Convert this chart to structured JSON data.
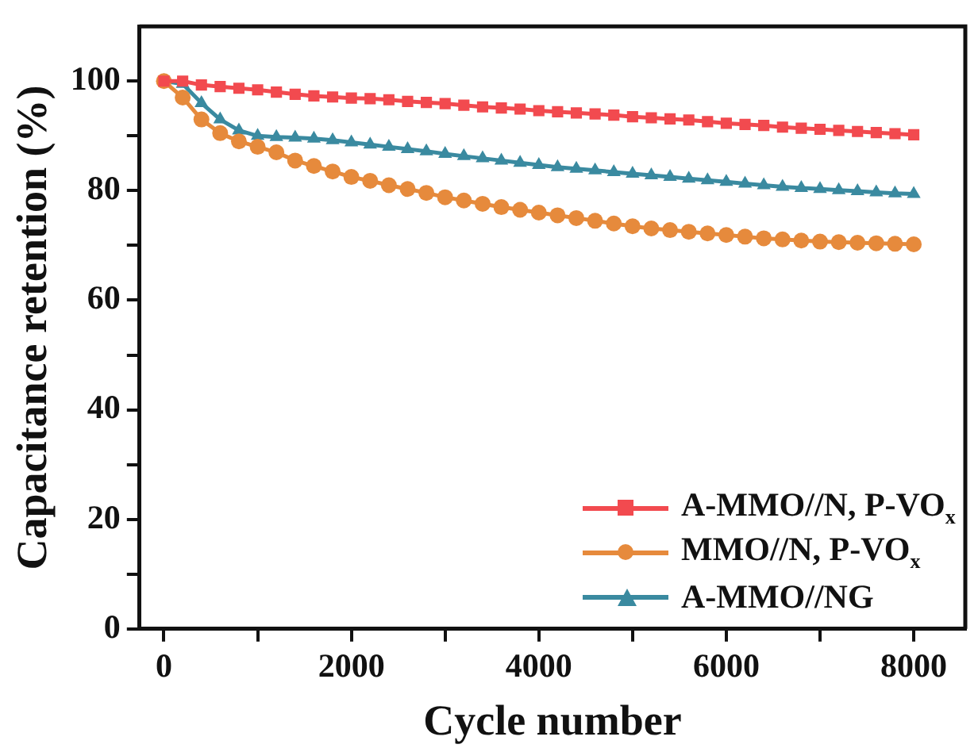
{
  "chart_data": {
    "type": "line",
    "xlabel": "Cycle number",
    "ylabel": "Capacitance retention (%)",
    "x": [
      0,
      200,
      400,
      600,
      800,
      1000,
      1200,
      1400,
      1600,
      1800,
      2000,
      2200,
      2400,
      2600,
      2800,
      3000,
      3200,
      3400,
      3600,
      3800,
      4000,
      4200,
      4400,
      4600,
      4800,
      5000,
      5200,
      5400,
      5600,
      5800,
      6000,
      6200,
      6400,
      6600,
      6800,
      7000,
      7200,
      7400,
      7600,
      7800,
      8000
    ],
    "series": [
      {
        "name": "A-MMO//N, P-VO$_{x}$",
        "color": "#f24a4f",
        "marker": "square",
        "values": [
          100,
          100,
          99.3,
          99,
          98.7,
          98.4,
          98,
          97.6,
          97.3,
          97.1,
          96.9,
          96.8,
          96.6,
          96.3,
          96.1,
          95.9,
          95.6,
          95.3,
          95.1,
          94.9,
          94.6,
          94.4,
          94.2,
          94,
          93.8,
          93.5,
          93.3,
          93.1,
          92.9,
          92.6,
          92.3,
          92.1,
          91.9,
          91.6,
          91.4,
          91.2,
          91,
          90.8,
          90.6,
          90.4,
          90.2
        ]
      },
      {
        "name": "MMO//N, P-VO$_{x}$",
        "color": "#e68a3c",
        "marker": "circle",
        "values": [
          100,
          97,
          93,
          90.5,
          89,
          88,
          87,
          85.5,
          84.5,
          83.5,
          82.5,
          81.8,
          81,
          80.3,
          79.6,
          78.8,
          78.2,
          77.6,
          77,
          76.5,
          76,
          75.5,
          75,
          74.5,
          74,
          73.5,
          73.1,
          72.8,
          72.5,
          72.2,
          71.9,
          71.6,
          71.3,
          71.1,
          70.9,
          70.7,
          70.6,
          70.5,
          70.4,
          70.3,
          70.2
        ]
      },
      {
        "name": "A-MMO//NG",
        "color": "#3a8aa0",
        "marker": "triangle",
        "values": [
          100,
          99.5,
          96,
          93,
          91,
          90,
          89.8,
          89.7,
          89.5,
          89.2,
          88.8,
          88.4,
          88,
          87.6,
          87.2,
          86.7,
          86.3,
          85.9,
          85.5,
          85.1,
          84.7,
          84.3,
          84,
          83.7,
          83.4,
          83.1,
          82.8,
          82.5,
          82.2,
          81.9,
          81.6,
          81.3,
          81,
          80.7,
          80.5,
          80.3,
          80.1,
          79.9,
          79.7,
          79.5,
          79.4
        ]
      }
    ],
    "xlim": [
      -260,
      8550
    ],
    "xticks": [
      0,
      {
        "value": 1000,
        "label": null
      },
      2000,
      {
        "value": 3000,
        "label": null
      },
      4000,
      {
        "value": 5000,
        "label": null
      },
      6000,
      {
        "value": 7000,
        "label": null
      },
      8000
    ],
    "ylim": [
      0,
      110
    ],
    "yticks": [
      0,
      {
        "value": 10,
        "label": null
      },
      20,
      {
        "value": 30,
        "label": null
      },
      40,
      {
        "value": 50,
        "label": null
      },
      60,
      {
        "value": 70,
        "label": null
      },
      80,
      {
        "value": 90,
        "label": null
      },
      100
    ],
    "legend": "bottom right",
    "line_style": "solid"
  }
}
